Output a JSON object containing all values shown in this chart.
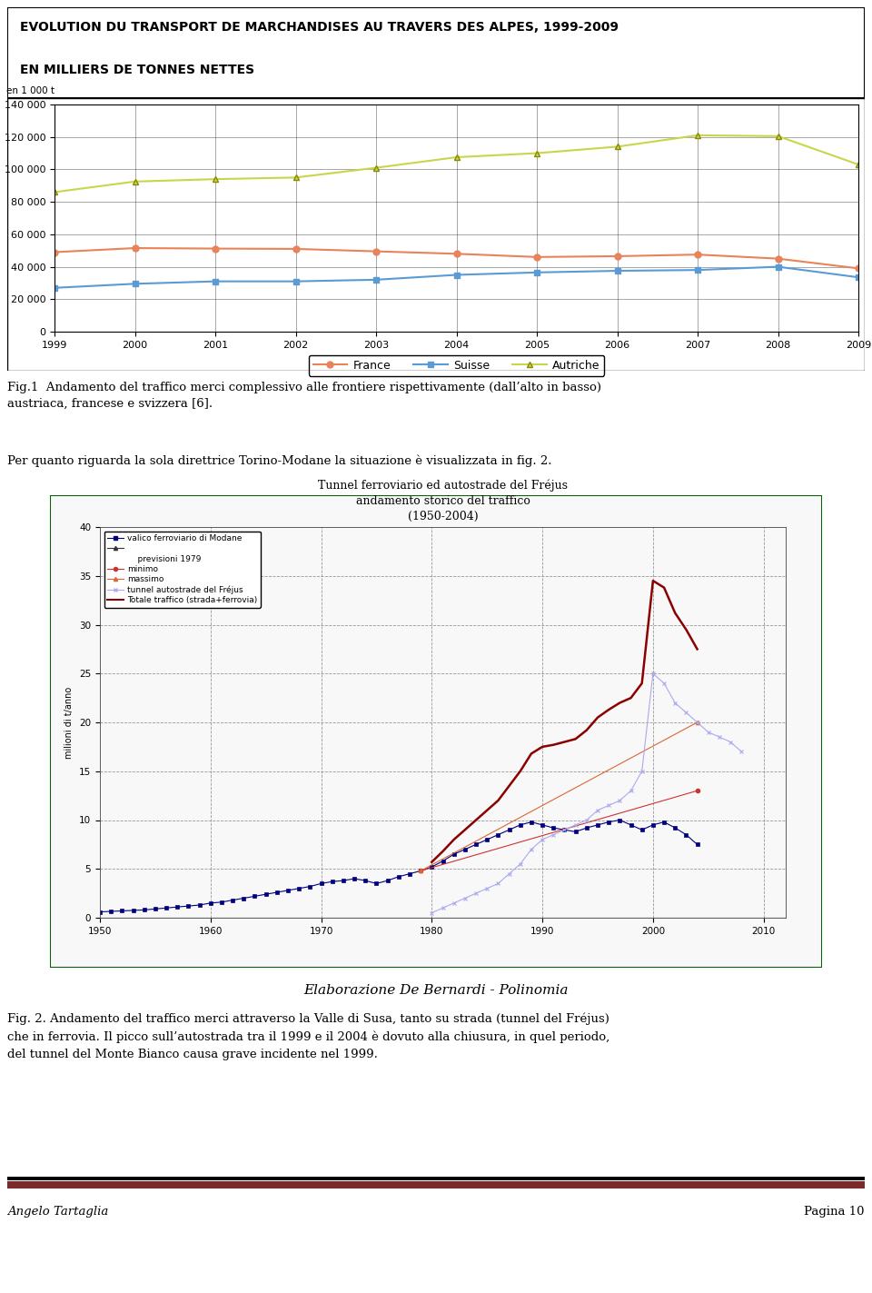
{
  "page_width": 9.6,
  "page_height": 14.23,
  "bg_color": "#ffffff",
  "chart1": {
    "title_line1": "EVOLUTION DU TRANSPORT DE MARCHANDISES AU TRAVERS DES ALPES, 1999-2009",
    "title_line2": "EN MILLIERS DE TONNES NETTES",
    "ylabel": "en 1 000 t",
    "years": [
      1999,
      2000,
      2001,
      2002,
      2003,
      2004,
      2005,
      2006,
      2007,
      2008,
      2009
    ],
    "france": [
      49000,
      51500,
      51200,
      51000,
      49500,
      48000,
      46000,
      46500,
      47500,
      45000,
      39000
    ],
    "suisse": [
      27000,
      29500,
      31000,
      31000,
      32000,
      35000,
      36500,
      37500,
      38000,
      40000,
      33500
    ],
    "autriche": [
      86000,
      92500,
      94000,
      95000,
      101000,
      107500,
      110000,
      114000,
      121000,
      120500,
      103000
    ],
    "france_color": "#e8835a",
    "suisse_color": "#5b9bd5",
    "autriche_color": "#c8d64a",
    "ylim": [
      0,
      140000
    ],
    "yticks": [
      0,
      20000,
      40000,
      60000,
      80000,
      100000,
      120000,
      140000
    ],
    "ytick_labels": [
      "0",
      "20 000",
      "40 000",
      "60 000",
      "80 000",
      "100 000",
      "120 000",
      "140 000"
    ]
  },
  "text1": "Fig.1  Andamento del traffico merci complessivo alle frontiere rispettivamente (dall’alto in basso)\naustriaca, francese e svizzera [6].",
  "text2": "Per quanto riguarda la sola direttrice Torino-Modane la situazione è visualizzata in fig. 2.",
  "chart2": {
    "title_line1": "Tunnel ferroviario ed autostrade del Fréjus",
    "title_line2": "andamento storico del traffico",
    "title_line3": "(1950-2004)",
    "ylabel": "milioni di t/anno",
    "xlim": [
      1950,
      2012
    ],
    "ylim": [
      0,
      40
    ],
    "yticks": [
      0,
      5,
      10,
      15,
      20,
      25,
      30,
      35,
      40
    ],
    "xticks": [
      1950,
      1960,
      1970,
      1980,
      1990,
      2000,
      2010
    ],
    "dashed_vlines": [
      1960,
      1970,
      1980,
      1990,
      2000,
      2010
    ],
    "dashed_hlines": [
      5,
      10,
      15,
      20,
      25,
      30,
      35
    ],
    "valico_years": [
      1950,
      1951,
      1952,
      1953,
      1954,
      1955,
      1956,
      1957,
      1958,
      1959,
      1960,
      1961,
      1962,
      1963,
      1964,
      1965,
      1966,
      1967,
      1968,
      1969,
      1970,
      1971,
      1972,
      1973,
      1974,
      1975,
      1976,
      1977,
      1978,
      1979,
      1980,
      1981,
      1982,
      1983,
      1984,
      1985,
      1986,
      1987,
      1988,
      1989,
      1990,
      1991,
      1992,
      1993,
      1994,
      1995,
      1996,
      1997,
      1998,
      1999,
      2000,
      2001,
      2002,
      2003,
      2004
    ],
    "valico_vals": [
      0.6,
      0.65,
      0.7,
      0.75,
      0.8,
      0.9,
      1.0,
      1.1,
      1.2,
      1.3,
      1.5,
      1.6,
      1.8,
      2.0,
      2.2,
      2.4,
      2.6,
      2.8,
      3.0,
      3.2,
      3.5,
      3.7,
      3.8,
      4.0,
      3.8,
      3.5,
      3.8,
      4.2,
      4.5,
      4.8,
      5.2,
      5.8,
      6.5,
      7.0,
      7.5,
      8.0,
      8.5,
      9.0,
      9.5,
      9.8,
      9.5,
      9.2,
      9.0,
      8.8,
      9.2,
      9.5,
      9.8,
      10.0,
      9.5,
      9.0,
      9.5,
      9.8,
      9.2,
      8.5,
      7.5
    ],
    "valico_color": "#000080",
    "tunnel_years": [
      1980,
      1981,
      1982,
      1983,
      1984,
      1985,
      1986,
      1987,
      1988,
      1989,
      1990,
      1991,
      1992,
      1993,
      1994,
      1995,
      1996,
      1997,
      1998,
      1999,
      2000,
      2001,
      2002,
      2003,
      2004,
      2005,
      2006,
      2007,
      2008
    ],
    "tunnel_vals": [
      0.5,
      1.0,
      1.5,
      2.0,
      2.5,
      3.0,
      3.5,
      4.5,
      5.5,
      7.0,
      8.0,
      8.5,
      9.0,
      9.5,
      10.0,
      11.0,
      11.5,
      12.0,
      13.0,
      15.0,
      25.0,
      24.0,
      22.0,
      21.0,
      20.0,
      19.0,
      18.5,
      18.0,
      17.0
    ],
    "tunnel_color": "#aaaaee",
    "totale_years": [
      1980,
      1981,
      1982,
      1983,
      1984,
      1985,
      1986,
      1987,
      1988,
      1989,
      1990,
      1991,
      1992,
      1993,
      1994,
      1995,
      1996,
      1997,
      1998,
      1999,
      2000,
      2001,
      2002,
      2003,
      2004
    ],
    "totale_vals": [
      5.7,
      6.8,
      8.0,
      9.0,
      10.0,
      11.0,
      12.0,
      13.5,
      15.0,
      16.8,
      17.5,
      17.7,
      18.0,
      18.3,
      19.2,
      20.5,
      21.3,
      22.0,
      22.5,
      24.0,
      34.5,
      33.8,
      31.2,
      29.5,
      27.5
    ],
    "totale_color": "#8b0000",
    "prev_min_years": [
      1979,
      2004
    ],
    "prev_min_vals": [
      4.8,
      13.0
    ],
    "prev_max_years": [
      1979,
      2004
    ],
    "prev_max_vals": [
      4.8,
      20.0
    ],
    "elaborazione_text": "Elaborazione De Bernardi - Polinomia"
  },
  "caption2": "Fig. 2. Andamento del traffico merci attraverso la Valle di Susa, tanto su strada (tunnel del Fréjus)\nche in ferrovia. Il picco sull’autostrada tra il 1999 e il 2004 è dovuto alla chiusura, in quel periodo,\ndel tunnel del Monte Bianco causa grave incidente nel 1999.",
  "footer_left": "Angelo Tartaglia",
  "footer_right": "Pagina 10",
  "footer_bar_color": "#7a2a2a"
}
